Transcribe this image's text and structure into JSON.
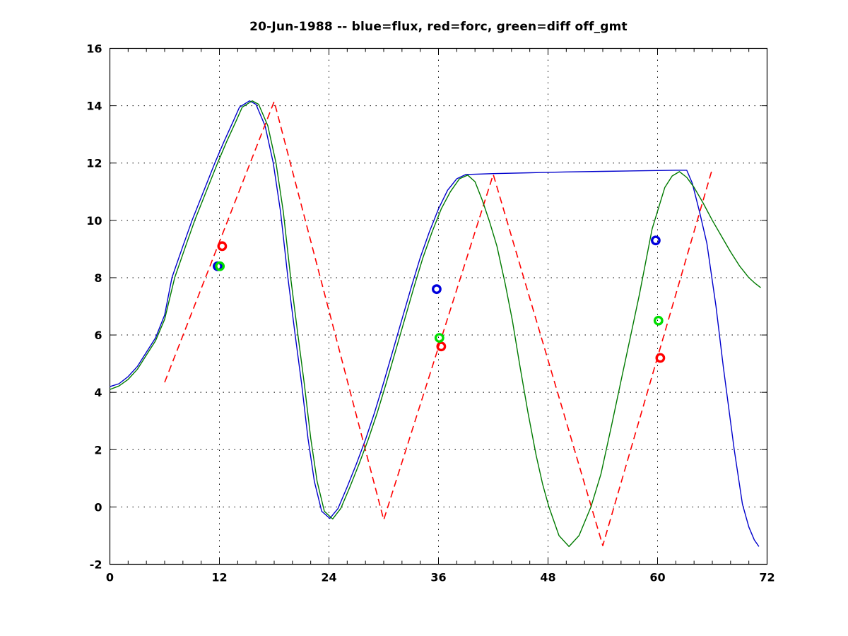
{
  "title": "20-Jun-1988 -- blue=flux, red=forc, green=diff off_gmt",
  "colors": {
    "flux_line": "#0000cc",
    "diff_line": "#007a00",
    "forc_line": "#ff0000",
    "flux_marker": "#0000dd",
    "forc_marker": "#ff0000",
    "diff_marker": "#00dd00",
    "axis": "#000000",
    "grid": "#000000",
    "background": "#ffffff",
    "text": "#000000"
  },
  "chart_data": {
    "type": "line",
    "title": "20-Jun-1988 -- blue=flux, red=forc, green=diff off_gmt",
    "xlabel": "",
    "ylabel": "",
    "xlim": [
      0,
      72
    ],
    "ylim": [
      -2,
      16
    ],
    "x_major_ticks": [
      0,
      12,
      24,
      36,
      48,
      60,
      72
    ],
    "x_minor_tick_step": 2,
    "y_ticks": [
      -2,
      0,
      2,
      4,
      6,
      8,
      10,
      12,
      14,
      16
    ],
    "x_grid_at": [
      12,
      24,
      36,
      48,
      60
    ],
    "y_grid_at": [
      0,
      2,
      4,
      6,
      8,
      10,
      12,
      14
    ],
    "grid": "dotted",
    "legend_position": "in-title",
    "series": [
      {
        "name": "flux",
        "color_key": "flux_line",
        "style": "solid",
        "points": [
          [
            0,
            4.2
          ],
          [
            1,
            4.3
          ],
          [
            2,
            4.55
          ],
          [
            3,
            4.9
          ],
          [
            4,
            5.4
          ],
          [
            5,
            5.9
          ],
          [
            6,
            6.7
          ],
          [
            6.8,
            8.0
          ],
          [
            8,
            9.1
          ],
          [
            9,
            10.0
          ],
          [
            10,
            10.8
          ],
          [
            11.5,
            12.0
          ],
          [
            12.5,
            12.75
          ],
          [
            13.5,
            13.45
          ],
          [
            14.2,
            13.95
          ],
          [
            15.3,
            14.17
          ],
          [
            16,
            14.05
          ],
          [
            17,
            13.3
          ],
          [
            17.9,
            12.0
          ],
          [
            18.7,
            10.3
          ],
          [
            19.5,
            8.0
          ],
          [
            20.3,
            6.0
          ],
          [
            21,
            4.3
          ],
          [
            21.7,
            2.4
          ],
          [
            22.4,
            0.9
          ],
          [
            23.2,
            -0.15
          ],
          [
            24.1,
            -0.4
          ],
          [
            25,
            -0.05
          ],
          [
            26,
            0.7
          ],
          [
            27,
            1.5
          ],
          [
            28,
            2.35
          ],
          [
            29,
            3.3
          ],
          [
            30,
            4.35
          ],
          [
            31,
            5.45
          ],
          [
            32,
            6.55
          ],
          [
            33,
            7.65
          ],
          [
            34,
            8.7
          ],
          [
            35,
            9.6
          ],
          [
            36,
            10.4
          ],
          [
            37,
            11.05
          ],
          [
            38,
            11.45
          ],
          [
            39,
            11.6
          ],
          [
            42,
            11.63
          ],
          [
            46,
            11.66
          ],
          [
            50,
            11.69
          ],
          [
            54,
            11.71
          ],
          [
            58,
            11.73
          ],
          [
            62,
            11.75
          ],
          [
            63.2,
            11.75
          ],
          [
            63.8,
            11.3
          ],
          [
            64.6,
            10.3
          ],
          [
            65.4,
            9.2
          ],
          [
            66.4,
            7.0
          ],
          [
            67.2,
            4.9
          ],
          [
            68.4,
            2.0
          ],
          [
            69.3,
            0.1
          ],
          [
            70,
            -0.7
          ],
          [
            70.6,
            -1.15
          ],
          [
            71.1,
            -1.38
          ]
        ]
      },
      {
        "name": "forc",
        "color_key": "forc_line",
        "style": "dashed",
        "points": [
          [
            6,
            4.35
          ],
          [
            18,
            14.15
          ],
          [
            30,
            -0.45
          ],
          [
            42,
            11.6
          ],
          [
            54,
            -1.35
          ],
          [
            66,
            11.8
          ]
        ]
      },
      {
        "name": "diff",
        "color_key": "diff_line",
        "style": "solid",
        "points": [
          [
            0,
            4.1
          ],
          [
            1,
            4.22
          ],
          [
            2,
            4.45
          ],
          [
            3,
            4.8
          ],
          [
            4,
            5.3
          ],
          [
            5,
            5.8
          ],
          [
            6,
            6.55
          ],
          [
            7.1,
            8.0
          ],
          [
            8.3,
            9.1
          ],
          [
            9.3,
            10.0
          ],
          [
            10.3,
            10.8
          ],
          [
            11.8,
            12.0
          ],
          [
            12.8,
            12.75
          ],
          [
            13.8,
            13.45
          ],
          [
            14.5,
            13.95
          ],
          [
            15.6,
            14.17
          ],
          [
            16.3,
            14.05
          ],
          [
            17.3,
            13.3
          ],
          [
            18.2,
            12.0
          ],
          [
            19,
            10.3
          ],
          [
            19.8,
            8.0
          ],
          [
            20.6,
            6.0
          ],
          [
            21.3,
            4.3
          ],
          [
            22,
            2.4
          ],
          [
            22.7,
            0.9
          ],
          [
            23.5,
            -0.15
          ],
          [
            24.4,
            -0.42
          ],
          [
            25.3,
            -0.05
          ],
          [
            26.3,
            0.7
          ],
          [
            27.3,
            1.5
          ],
          [
            28.3,
            2.35
          ],
          [
            29.3,
            3.3
          ],
          [
            30.3,
            4.35
          ],
          [
            31.3,
            5.45
          ],
          [
            32.3,
            6.55
          ],
          [
            33.3,
            7.65
          ],
          [
            34.3,
            8.7
          ],
          [
            35.3,
            9.6
          ],
          [
            36.3,
            10.4
          ],
          [
            37.3,
            11.0
          ],
          [
            38.3,
            11.45
          ],
          [
            39.2,
            11.58
          ],
          [
            40,
            11.35
          ],
          [
            40.8,
            10.7
          ],
          [
            41.6,
            9.95
          ],
          [
            42.4,
            9.1
          ],
          [
            43.3,
            7.8
          ],
          [
            44.1,
            6.5
          ],
          [
            44.9,
            4.95
          ],
          [
            45.8,
            3.3
          ],
          [
            46.7,
            1.8
          ],
          [
            47.4,
            0.8
          ],
          [
            48.1,
            0.0
          ],
          [
            49.2,
            -1.0
          ],
          [
            50.3,
            -1.38
          ],
          [
            51.4,
            -1.0
          ],
          [
            52.7,
            0.0
          ],
          [
            53.8,
            1.15
          ],
          [
            55,
            2.9
          ],
          [
            56,
            4.4
          ],
          [
            57,
            5.9
          ],
          [
            58,
            7.4
          ],
          [
            59.4,
            9.7
          ],
          [
            60.8,
            11.15
          ],
          [
            61.6,
            11.55
          ],
          [
            62.4,
            11.7
          ],
          [
            63.2,
            11.5
          ],
          [
            64,
            11.15
          ],
          [
            65,
            10.6
          ],
          [
            66,
            10.0
          ],
          [
            67,
            9.45
          ],
          [
            68,
            8.9
          ],
          [
            69,
            8.4
          ],
          [
            70,
            8.0
          ],
          [
            70.7,
            7.8
          ],
          [
            71.3,
            7.65
          ]
        ]
      }
    ],
    "markers": [
      {
        "name": "flux-samples",
        "color_key": "flux_marker",
        "shape": "circle",
        "points": [
          [
            11.8,
            8.4
          ],
          [
            35.8,
            7.6
          ],
          [
            59.8,
            9.3
          ]
        ]
      },
      {
        "name": "forc-samples",
        "color_key": "forc_marker",
        "shape": "circle",
        "points": [
          [
            12.3,
            9.1
          ],
          [
            36.3,
            5.6
          ],
          [
            60.3,
            5.2
          ]
        ]
      },
      {
        "name": "diff-samples",
        "color_key": "diff_marker",
        "shape": "circle",
        "points": [
          [
            12.05,
            8.4
          ],
          [
            36.1,
            5.9
          ],
          [
            60.1,
            6.5
          ]
        ]
      }
    ]
  }
}
